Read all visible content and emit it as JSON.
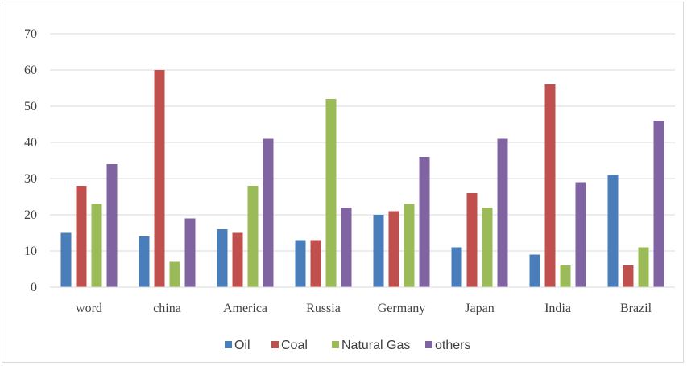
{
  "chart_data": {
    "type": "bar",
    "title": "",
    "xlabel": "",
    "ylabel": "",
    "categories": [
      "word",
      "china",
      "America",
      "Russia",
      "Germany",
      "Japan",
      "India",
      "Brazil"
    ],
    "series": [
      {
        "name": "Oil",
        "color": "#4a7ebb",
        "values": [
          15,
          14,
          16,
          13,
          20,
          11,
          9,
          31
        ]
      },
      {
        "name": "Coal",
        "color": "#c0504d",
        "values": [
          28,
          60,
          15,
          13,
          21,
          26,
          56,
          6
        ]
      },
      {
        "name": "Natural Gas",
        "color": "#9bbb59",
        "values": [
          23,
          7,
          28,
          52,
          23,
          22,
          6,
          11
        ]
      },
      {
        "name": "others",
        "color": "#8064a2",
        "values": [
          34,
          19,
          41,
          22,
          36,
          41,
          29,
          46
        ]
      }
    ],
    "ylim": [
      0,
      70
    ],
    "yticks": [
      0,
      10,
      20,
      30,
      40,
      50,
      60,
      70
    ],
    "grid": true,
    "legend_position": "bottom"
  }
}
